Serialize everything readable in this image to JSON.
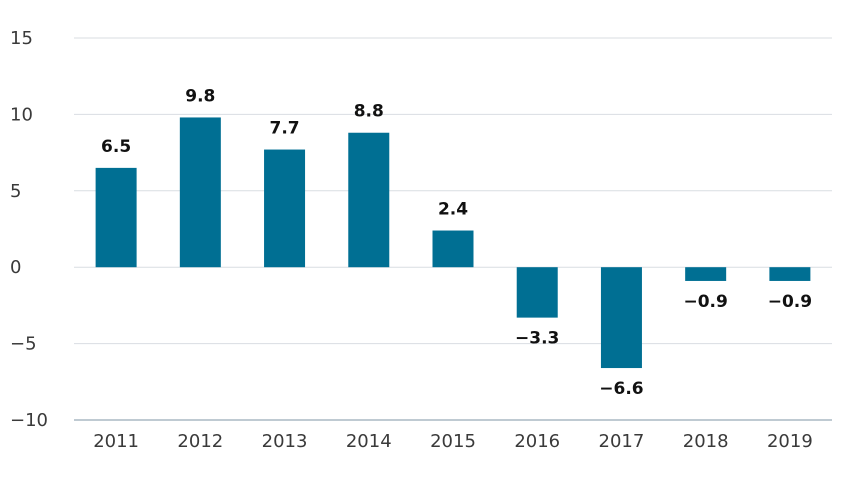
{
  "chart_data": {
    "type": "bar",
    "title": "",
    "xlabel": "",
    "ylabel": "",
    "categories": [
      "2011",
      "2012",
      "2013",
      "2014",
      "2015",
      "2016",
      "2017",
      "2018",
      "2019"
    ],
    "values": [
      6.5,
      9.8,
      7.7,
      8.8,
      2.4,
      -3.3,
      -6.6,
      -0.9,
      -0.9
    ],
    "data_labels": [
      "6.5",
      "9.8",
      "7.7",
      "8.8",
      "2.4",
      "−3.3",
      "−6.6",
      "−0.9",
      "−0.9"
    ],
    "ylim": [
      -10,
      15
    ],
    "yticks": [
      15,
      10,
      5,
      0,
      -5,
      -10
    ],
    "ytick_labels": [
      "15",
      "10",
      "5",
      "0",
      "−5",
      "−10"
    ],
    "grid": true,
    "colors": {
      "bar": "#006f93",
      "grid": "#d9dde2",
      "axis": "#aab8c4"
    }
  }
}
